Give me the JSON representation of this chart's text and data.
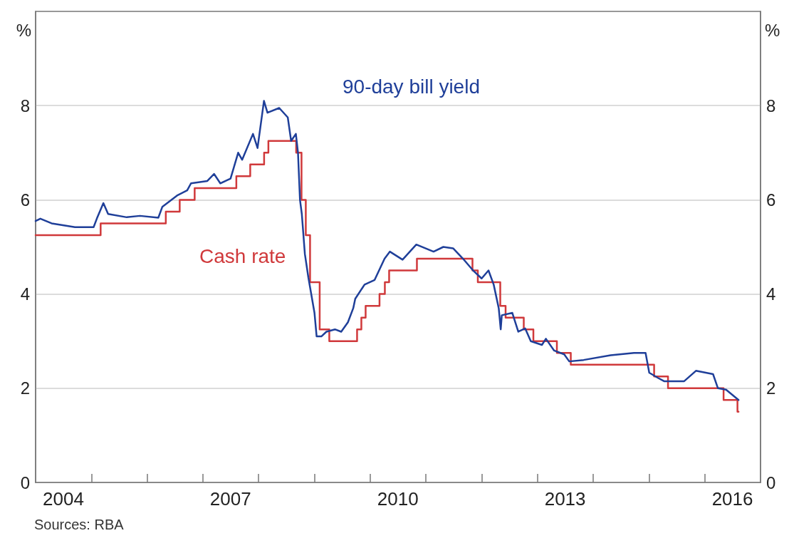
{
  "chart_data": {
    "type": "line",
    "ylabel": "%",
    "y2label": "%",
    "annotations": [
      "Sources: RBA"
    ],
    "xlim": [
      "2004-01-01",
      "2017-01-01"
    ],
    "xticks": [
      {
        "value": "2004-07-01",
        "label": "2004"
      },
      {
        "value": "2005-01-01",
        "label": null
      },
      {
        "value": "2006-01-01",
        "label": null
      },
      {
        "value": "2007-01-01",
        "label": null
      },
      {
        "value": "2007-07-01",
        "label": "2007"
      },
      {
        "value": "2008-01-01",
        "label": null
      },
      {
        "value": "2009-01-01",
        "label": null
      },
      {
        "value": "2010-01-01",
        "label": null
      },
      {
        "value": "2010-07-01",
        "label": "2010"
      },
      {
        "value": "2011-01-01",
        "label": null
      },
      {
        "value": "2012-01-01",
        "label": null
      },
      {
        "value": "2013-01-01",
        "label": null
      },
      {
        "value": "2013-07-01",
        "label": "2013"
      },
      {
        "value": "2014-01-01",
        "label": null
      },
      {
        "value": "2015-01-01",
        "label": null
      },
      {
        "value": "2016-01-01",
        "label": null
      },
      {
        "value": "2016-07-01",
        "label": "2016"
      }
    ],
    "ylim": [
      0,
      10
    ],
    "yticks": [
      0,
      2,
      4,
      6,
      8
    ],
    "y2lim": [
      0,
      10
    ],
    "y2ticks": [
      0,
      2,
      4,
      6,
      8
    ],
    "grid": "y",
    "marker": "none",
    "line_style": "solid",
    "series": [
      {
        "name": "90-day bill yield",
        "color": "#1f3f99",
        "x": [
          "2004-01-01",
          "2004-02-01",
          "2004-04-15",
          "2004-09-15",
          "2005-01-15",
          "2005-02-05",
          "2005-03-20",
          "2005-04-20",
          "2005-08-20",
          "2005-11-15",
          "2006-03-15",
          "2006-04-10",
          "2006-07-20",
          "2006-09-20",
          "2006-10-15",
          "2007-01-30",
          "2007-03-15",
          "2007-04-25",
          "2007-07-01",
          "2007-08-20",
          "2007-09-15",
          "2007-11-25",
          "2007-12-25",
          "2008-02-05",
          "2008-02-28",
          "2008-05-15",
          "2008-07-10",
          "2008-08-01",
          "2008-09-01",
          "2008-09-15",
          "2008-09-28",
          "2008-10-10",
          "2008-10-30",
          "2008-11-22",
          "2009-01-01",
          "2009-01-15",
          "2009-02-15",
          "2009-03-20",
          "2009-05-15",
          "2009-06-25",
          "2009-08-08",
          "2009-09-12",
          "2009-09-25",
          "2009-11-25",
          "2010-01-30",
          "2010-04-05",
          "2010-05-10",
          "2010-08-01",
          "2010-10-30",
          "2011-02-20",
          "2011-04-25",
          "2011-06-28",
          "2011-09-01",
          "2011-11-06",
          "2012-01-01",
          "2012-02-15",
          "2012-03-20",
          "2012-04-22",
          "2012-05-05",
          "2012-05-12",
          "2012-07-20",
          "2012-08-28",
          "2012-10-12",
          "2012-11-18",
          "2013-01-30",
          "2013-02-25",
          "2013-04-20",
          "2013-06-25",
          "2013-07-28",
          "2013-10-30",
          "2014-04-25",
          "2014-09-25",
          "2014-12-10",
          "2015-01-03",
          "2015-03-01",
          "2015-04-10",
          "2015-08-20",
          "2015-11-05",
          "2016-02-25",
          "2016-03-28",
          "2016-05-20",
          "2016-08-10"
        ],
        "values": [
          5.55,
          5.6,
          5.5,
          5.42,
          5.42,
          5.6,
          5.93,
          5.7,
          5.63,
          5.66,
          5.62,
          5.85,
          6.1,
          6.2,
          6.35,
          6.4,
          6.55,
          6.35,
          6.45,
          7.0,
          6.85,
          7.4,
          7.1,
          8.1,
          7.85,
          7.95,
          7.75,
          7.25,
          7.4,
          7.0,
          6.0,
          5.7,
          4.85,
          4.35,
          3.6,
          3.1,
          3.1,
          3.2,
          3.25,
          3.2,
          3.4,
          3.7,
          3.9,
          4.2,
          4.3,
          4.75,
          4.9,
          4.73,
          5.05,
          4.9,
          5.0,
          4.97,
          4.75,
          4.5,
          4.33,
          4.5,
          4.2,
          3.7,
          3.25,
          3.55,
          3.6,
          3.2,
          3.27,
          3.0,
          2.92,
          3.05,
          2.8,
          2.72,
          2.57,
          2.6,
          2.7,
          2.75,
          2.75,
          2.33,
          2.22,
          2.15,
          2.15,
          2.37,
          2.3,
          2.0,
          1.97,
          1.75
        ]
      },
      {
        "name": "Cash rate",
        "type": "step",
        "color": "#d0393b",
        "x": [
          "2004-01-01",
          "2005-03-02",
          "2006-05-03",
          "2006-08-02",
          "2006-11-08",
          "2007-08-08",
          "2007-11-07",
          "2008-02-06",
          "2008-03-05",
          "2008-09-03",
          "2008-10-08",
          "2008-11-05",
          "2008-12-03",
          "2009-02-04",
          "2009-04-08",
          "2009-10-07",
          "2009-11-04",
          "2009-12-02",
          "2010-03-03",
          "2010-04-07",
          "2010-05-05",
          "2010-11-03",
          "2011-11-02",
          "2011-12-07",
          "2012-05-02",
          "2012-06-06",
          "2012-10-03",
          "2012-12-05",
          "2013-05-08",
          "2013-08-07",
          "2015-02-04",
          "2015-05-06",
          "2016-05-04",
          "2016-08-03",
          "2016-08-10"
        ],
        "values": [
          5.25,
          5.5,
          5.75,
          6.0,
          6.25,
          6.5,
          6.75,
          7.0,
          7.25,
          7.0,
          6.0,
          5.25,
          4.25,
          3.25,
          3.0,
          3.25,
          3.5,
          3.75,
          4.0,
          4.25,
          4.5,
          4.75,
          4.5,
          4.25,
          3.75,
          3.5,
          3.25,
          3.0,
          2.75,
          2.5,
          2.25,
          2.0,
          1.75,
          1.5,
          1.5
        ]
      }
    ]
  }
}
